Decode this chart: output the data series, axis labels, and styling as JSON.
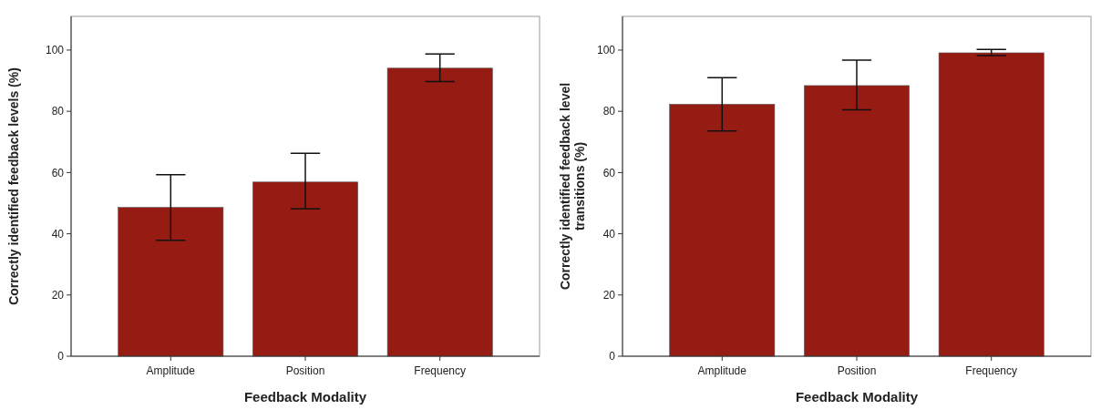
{
  "chart_data": [
    {
      "type": "bar",
      "xlabel": "Feedback Modality",
      "ylabel": "Correctly identified feedback levels (%)",
      "categories": [
        "Amplitude",
        "Position",
        "Frequency"
      ],
      "values": [
        48.6,
        56.9,
        94.1
      ],
      "color": "#961b12",
      "errors": [
        [
          37.9,
          59.3
        ],
        [
          48.1,
          66.3
        ],
        [
          89.7,
          98.7
        ]
      ],
      "ylim": [
        0,
        111
      ],
      "yticks": [
        0,
        20,
        40,
        60,
        80,
        100
      ]
    },
    {
      "type": "bar",
      "xlabel": "Feedback Modality",
      "ylabel": "Correctly identified feedback level transitions (%)",
      "categories": [
        "Amplitude",
        "Position",
        "Frequency"
      ],
      "values": [
        82.3,
        88.4,
        99.1
      ],
      "color": "#961b12",
      "errors": [
        [
          73.6,
          91.0
        ],
        [
          80.5,
          96.7
        ],
        [
          98.2,
          100.2
        ]
      ],
      "ylim": [
        0,
        111
      ],
      "yticks": [
        0,
        20,
        40,
        60,
        80,
        100
      ]
    }
  ]
}
